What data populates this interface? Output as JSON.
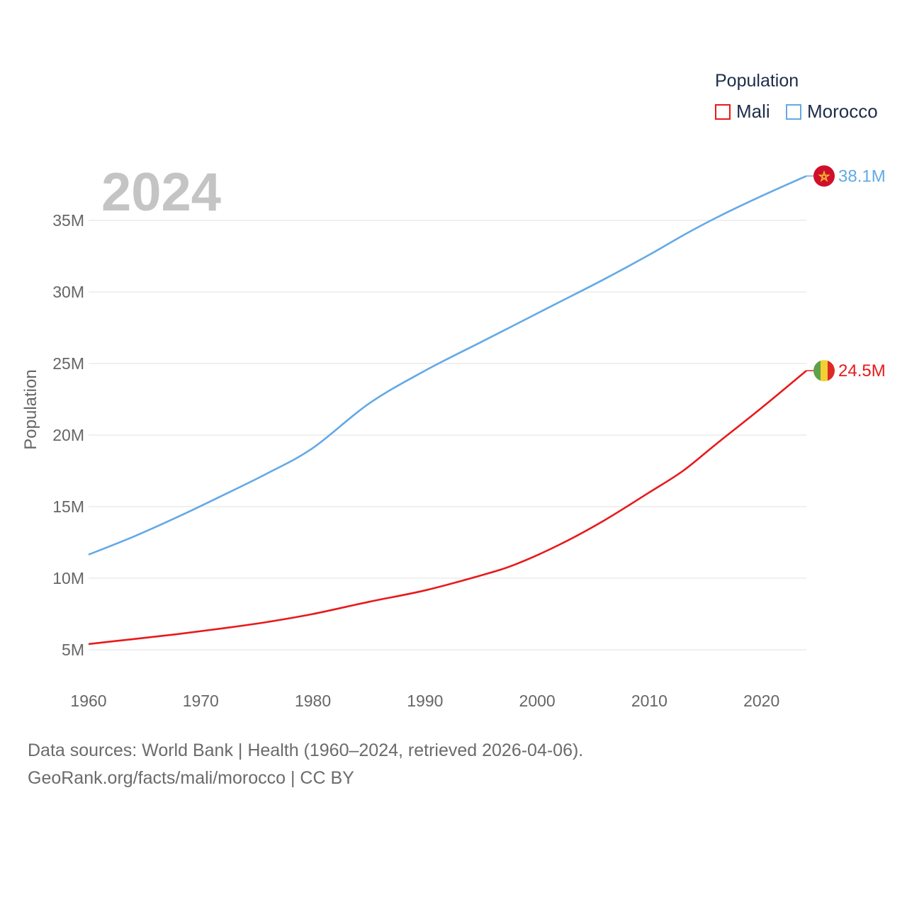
{
  "chart_data": {
    "type": "line",
    "title": "Population",
    "ylabel": "Population",
    "xlabel": "",
    "current_year": "2024",
    "xlim": [
      1960,
      2024
    ],
    "ylim": [
      3000000,
      38500000
    ],
    "x_ticks": [
      1960,
      1970,
      1980,
      1990,
      2000,
      2010,
      2020
    ],
    "y_ticks": [
      {
        "value": 5000000,
        "label": "5M"
      },
      {
        "value": 10000000,
        "label": "10M"
      },
      {
        "value": 15000000,
        "label": "15M"
      },
      {
        "value": 20000000,
        "label": "20M"
      },
      {
        "value": 25000000,
        "label": "25M"
      },
      {
        "value": 30000000,
        "label": "30M"
      },
      {
        "value": 35000000,
        "label": "35M"
      }
    ],
    "x": [
      1960,
      1964,
      1968,
      1972,
      1976,
      1980,
      1985,
      1990,
      1995,
      1998,
      2002,
      2006,
      2010,
      2013,
      2016,
      2020,
      2024
    ],
    "series": [
      {
        "name": "Mali",
        "color": "#e8191b",
        "end_label": "24.5M",
        "flag": "mali-flag",
        "values": [
          5400000,
          5750000,
          6100000,
          6500000,
          6950000,
          7500000,
          8350000,
          9150000,
          10200000,
          10950000,
          12350000,
          14050000,
          16000000,
          17500000,
          19400000,
          21900000,
          24500000
        ]
      },
      {
        "name": "Morocco",
        "color": "#64a9e6",
        "end_label": "38.1M",
        "flag": "morocco-flag",
        "values": [
          11650000,
          12900000,
          14300000,
          15800000,
          17350000,
          19100000,
          22200000,
          24500000,
          26500000,
          27700000,
          29300000,
          30900000,
          32600000,
          33950000,
          35200000,
          36700000,
          38100000
        ]
      }
    ]
  },
  "legend": {
    "title": "Population",
    "items": [
      "Mali",
      "Morocco"
    ]
  },
  "footer": {
    "line1": "Data sources: World Bank | Health (1960–2024, retrieved 2026-04-06).",
    "line2": "GeoRank.org/facts/mali/morocco | CC BY"
  }
}
